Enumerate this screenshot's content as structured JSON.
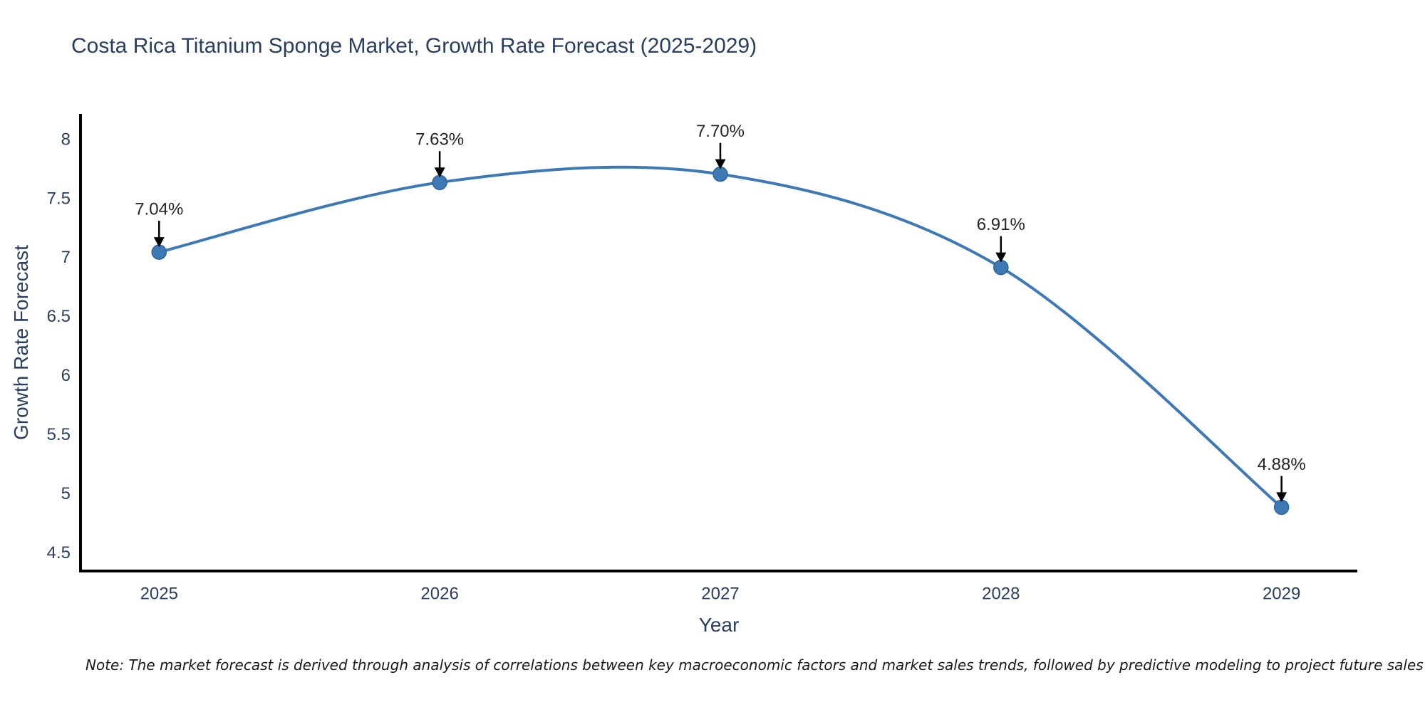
{
  "title": {
    "text": "Costa Rica Titanium Sponge Market, Growth Rate Forecast (2025-2029)"
  },
  "footnote": {
    "text": "Note: The market forecast is derived through analysis of correlations between key macroeconomic factors and market sales trends, followed by predictive modeling to project future sales"
  },
  "chart_data": {
    "type": "line",
    "title": "Costa Rica Titanium Sponge Market, Growth Rate Forecast (2025-2029)",
    "xlabel": "Year",
    "ylabel": "Growth Rate Forecast",
    "x": [
      2025,
      2026,
      2027,
      2028,
      2029
    ],
    "values": [
      7.04,
      7.63,
      7.7,
      6.91,
      4.88
    ],
    "point_labels": [
      "7.04%",
      "7.63%",
      "7.70%",
      "6.91%",
      "4.88%"
    ],
    "x_tick_labels": [
      "2025",
      "2026",
      "2027",
      "2028",
      "2029"
    ],
    "y_ticks": [
      4.5,
      5,
      5.5,
      6,
      6.5,
      7,
      7.5,
      8
    ],
    "xlim": [
      2024.72,
      2029.27
    ],
    "ylim": [
      4.34,
      8.21
    ],
    "line_shape": "spline",
    "grid": false,
    "legend": "none",
    "colors": {
      "line": "#3c79b5",
      "marker_fill": "#3c79b5",
      "marker_edge": "#2e6597",
      "axis_line": "#000000",
      "tick_label": "#2a3f5f",
      "axis_title": "#2a3f5f",
      "chart_title": "#2a3f5f",
      "annotation_text": "#252525",
      "annotation_arrow": "#000000"
    }
  }
}
